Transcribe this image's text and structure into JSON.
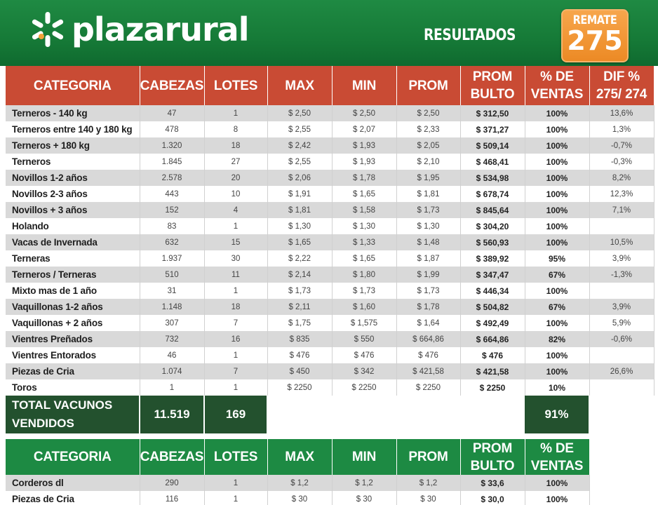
{
  "header": {
    "brand": "plazarural",
    "section_title": "RESULTADOS",
    "remate_label": "REMATE",
    "remate_number": "275",
    "colors": {
      "green": "#1d8a43",
      "red": "#c94b34",
      "orange": "#ec8a25",
      "dark_green": "#23512e"
    }
  },
  "vacunos": {
    "columns": [
      "CATEGORIA",
      "CABEZAS",
      "LOTES",
      "MAX",
      "MIN",
      "PROM",
      "PROM BULTO",
      "% DE VENTAS",
      "DIF % 275/ 274"
    ],
    "column_lines": [
      [
        "CATEGORIA"
      ],
      [
        "CABEZAS"
      ],
      [
        "LOTES"
      ],
      [
        "MAX"
      ],
      [
        "MIN"
      ],
      [
        "PROM"
      ],
      [
        "PROM",
        "BULTO"
      ],
      [
        "% DE",
        "VENTAS"
      ],
      [
        "DIF %",
        "275/ 274"
      ]
    ],
    "rows": [
      [
        "Terneros - 140 kg",
        "47",
        "1",
        "$ 2,50",
        "$ 2,50",
        "$ 2,50",
        "$ 312,50",
        "100%",
        "13,6%"
      ],
      [
        "Terneros entre 140 y 180 kg",
        "478",
        "8",
        "$ 2,55",
        "$ 2,07",
        "$ 2,33",
        "$ 371,27",
        "100%",
        "1,3%"
      ],
      [
        "Terneros + 180 kg",
        "1.320",
        "18",
        "$ 2,42",
        "$ 1,93",
        "$ 2,05",
        "$ 509,14",
        "100%",
        "-0,7%"
      ],
      [
        "Terneros",
        "1.845",
        "27",
        "$ 2,55",
        "$ 1,93",
        "$ 2,10",
        "$ 468,41",
        "100%",
        "-0,3%"
      ],
      [
        "Novillos 1-2 años",
        "2.578",
        "20",
        "$ 2,06",
        "$ 1,78",
        "$ 1,95",
        "$ 534,98",
        "100%",
        "8,2%"
      ],
      [
        "Novillos 2-3 años",
        "443",
        "10",
        "$ 1,91",
        "$ 1,65",
        "$ 1,81",
        "$ 678,74",
        "100%",
        "12,3%"
      ],
      [
        "Novillos + 3 años",
        "152",
        "4",
        "$ 1,81",
        "$ 1,58",
        "$ 1,73",
        "$ 845,64",
        "100%",
        "7,1%"
      ],
      [
        "Holando",
        "83",
        "1",
        "$ 1,30",
        "$ 1,30",
        "$ 1,30",
        "$ 304,20",
        "100%",
        ""
      ],
      [
        "Vacas de Invernada",
        "632",
        "15",
        "$ 1,65",
        "$ 1,33",
        "$ 1,48",
        "$ 560,93",
        "100%",
        "10,5%"
      ],
      [
        "Terneras",
        "1.937",
        "30",
        "$ 2,22",
        "$ 1,65",
        "$ 1,87",
        "$ 389,92",
        "95%",
        "3,9%"
      ],
      [
        "Terneros / Terneras",
        "510",
        "11",
        "$ 2,14",
        "$ 1,80",
        "$ 1,99",
        "$ 347,47",
        "67%",
        "-1,3%"
      ],
      [
        "Mixto mas de 1 año",
        "31",
        "1",
        "$ 1,73",
        "$ 1,73",
        "$ 1,73",
        "$ 446,34",
        "100%",
        ""
      ],
      [
        "Vaquillonas 1-2 años",
        "1.148",
        "18",
        "$ 2,11",
        "$ 1,60",
        "$ 1,78",
        "$ 504,82",
        "67%",
        "3,9%"
      ],
      [
        "Vaquillonas + 2 años",
        "307",
        "7",
        "$ 1,75",
        "$ 1,575",
        "$ 1,64",
        "$ 492,49",
        "100%",
        "5,9%"
      ],
      [
        "Vientres Preñados",
        "732",
        "16",
        "$ 835",
        "$ 550",
        "$ 664,86",
        "$ 664,86",
        "82%",
        "-0,6%"
      ],
      [
        "Vientres Entorados",
        "46",
        "1",
        "$ 476",
        "$ 476",
        "$ 476",
        "$ 476",
        "100%",
        ""
      ],
      [
        "Piezas de Cria",
        "1.074",
        "7",
        "$ 450",
        "$ 342",
        "$ 421,58",
        "$ 421,58",
        "100%",
        "26,6%"
      ],
      [
        "Toros",
        "1",
        "1",
        "$ 2250",
        "$ 2250",
        "$ 2250",
        "$ 2250",
        "10%",
        ""
      ]
    ],
    "total": {
      "label_line1": "TOTAL VACUNOS",
      "label_line2": "VENDIDOS",
      "cabezas": "11.519",
      "lotes": "169",
      "ventas": "91%"
    }
  },
  "ovinos": {
    "columns": [
      "CATEGORIA",
      "CABEZAS",
      "LOTES",
      "MAX",
      "MIN",
      "PROM",
      "PROM BULTO",
      "% DE VENTAS"
    ],
    "column_lines": [
      [
        "CATEGORIA"
      ],
      [
        "CABEZAS"
      ],
      [
        "LOTES"
      ],
      [
        "MAX"
      ],
      [
        "MIN"
      ],
      [
        "PROM"
      ],
      [
        "PROM",
        "BULTO"
      ],
      [
        "% DE",
        "VENTAS"
      ]
    ],
    "rows": [
      [
        "Corderos dl",
        "290",
        "1",
        "$ 1,2",
        "$ 1,2",
        "$ 1,2",
        "$ 33,6",
        "100%"
      ],
      [
        "Piezas de Cria",
        "116",
        "1",
        "$ 30",
        "$ 30",
        "$ 30",
        "$ 30,0",
        "100%"
      ]
    ]
  }
}
